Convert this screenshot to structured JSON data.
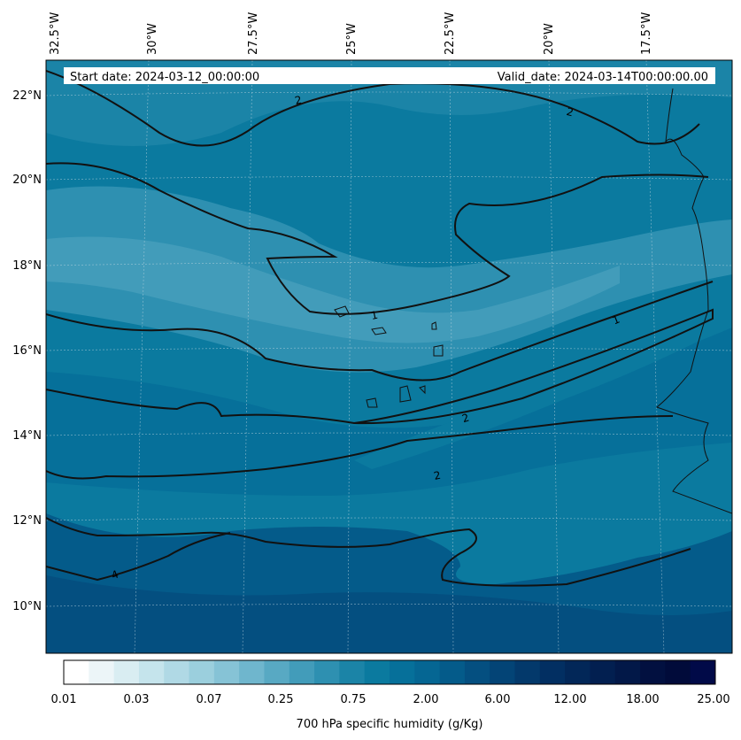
{
  "header": {
    "start_date": "Start date: 2024-03-12_00:00:00",
    "valid_date": "Valid_date: 2024-03-14T00:00:00.00"
  },
  "map": {
    "lon_labels": [
      "32.5°W",
      "30°W",
      "27.5°W",
      "25°W",
      "22.5°W",
      "20°W",
      "17.5°W"
    ],
    "lat_labels": [
      "22°N",
      "20°N",
      "18°N",
      "16°N",
      "14°N",
      "12°N",
      "10°N"
    ],
    "contour_labels": [
      "2",
      "2",
      "1",
      "1",
      "2",
      "2",
      "4"
    ],
    "gridlines": true
  },
  "colorbar": {
    "title": "700 hPa specific humidity (g/Kg)",
    "ticks": [
      "0.01",
      "0.03",
      "0.07",
      "0.25",
      "0.75",
      "2.00",
      "6.00",
      "12.00",
      "18.00",
      "25.00"
    ],
    "colors": [
      "#ffffff",
      "#ecf5f8",
      "#d9edf2",
      "#c5e4ec",
      "#b0d9e5",
      "#9bcfdd",
      "#86c3d6",
      "#6fb6cd",
      "#58a9c3",
      "#429cba",
      "#2e90b1",
      "#1b84a7",
      "#0b7a9f",
      "#06709a",
      "#056693",
      "#045b8a",
      "#044f80",
      "#034476",
      "#03396b",
      "#022f62",
      "#022758",
      "#021f50",
      "#021848",
      "#021040",
      "#010b3a",
      "#010a48"
    ]
  }
}
